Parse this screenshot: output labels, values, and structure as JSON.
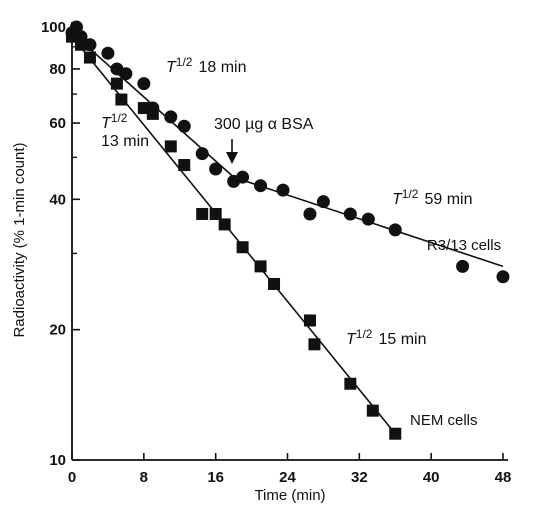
{
  "chart_data": {
    "type": "scatter",
    "xlabel": "Time (min)",
    "ylabel": "Radioactivity (% 1-min count)",
    "xlim": [
      0,
      48
    ],
    "ylim": [
      10,
      100
    ],
    "yscale": "log",
    "grid": false,
    "x_ticks": [
      0,
      8,
      16,
      24,
      32,
      40,
      48
    ],
    "x_tick_labels": [
      "0",
      "8",
      "16",
      "24",
      "32",
      "40",
      "48"
    ],
    "y_ticks": [
      10,
      20,
      40,
      60,
      80,
      100
    ],
    "y_tick_labels": [
      "10",
      "20",
      "40",
      "60",
      "80",
      "100"
    ],
    "y_minor_ticks": [
      30,
      50,
      70,
      90
    ],
    "series": [
      {
        "name": "R3/13 cells",
        "marker": "circle",
        "color": "#111111",
        "x": [
          0,
          0.5,
          1,
          2,
          4,
          5,
          6,
          8,
          9,
          11,
          12.5,
          14.5,
          16,
          18,
          19,
          21,
          23.5,
          26.5,
          28,
          31,
          33,
          36,
          43.5,
          48
        ],
        "y": [
          97,
          100,
          95,
          91,
          87,
          80,
          78,
          74,
          65,
          62,
          59,
          51,
          47,
          44,
          45,
          43,
          42,
          37,
          39.5,
          37,
          36,
          34,
          28,
          26.5
        ],
        "fit_segments": [
          {
            "x": [
              0,
              18
            ],
            "y": [
              97,
              45
            ]
          },
          {
            "x": [
              18,
              48
            ],
            "y": [
              45,
              28
            ]
          }
        ]
      },
      {
        "name": "NEM cells",
        "marker": "square",
        "color": "#111111",
        "x": [
          0,
          1,
          2,
          5,
          5.5,
          8,
          9,
          11,
          12.5,
          14.5,
          16,
          17,
          19,
          21,
          22.5,
          26.5,
          27,
          31,
          33.5,
          36
        ],
        "y": [
          95,
          91,
          85,
          74,
          68,
          65,
          63,
          53,
          48,
          37,
          37,
          35,
          31,
          28,
          25.5,
          21,
          18.5,
          15,
          13,
          11.5
        ],
        "fit_segments": [
          {
            "x": [
              0,
              36
            ],
            "y": [
              95,
              11.5
            ]
          }
        ]
      }
    ],
    "annotations": [
      {
        "text": "T½ 18 min",
        "italic_part": "T"
      },
      {
        "text": "T½ 13 min",
        "italic_part": "T"
      },
      {
        "text": "300 µg α BSA"
      },
      {
        "text": "T½ 59 min",
        "italic_part": "T"
      },
      {
        "text": "T½ 15 min",
        "italic_part": "T"
      },
      {
        "text": "R3/13 cells"
      },
      {
        "text": "NEM cells"
      }
    ],
    "arrow": {
      "label": "300 µg α BSA",
      "x": 18
    }
  },
  "annotations": {
    "t18": {
      "t": "T",
      "sup": "1/2",
      "rest": "18 min"
    },
    "t13": {
      "t": "T",
      "sup": "1/2",
      "rest": "13 min"
    },
    "bsa": "300 µg α BSA",
    "t59": {
      "t": "T",
      "sup": "1/2",
      "rest": "59 min"
    },
    "t15": {
      "t": "T",
      "sup": "1/2",
      "rest": "15 min"
    },
    "r313": "R3/13 cells",
    "nem": "NEM cells"
  }
}
